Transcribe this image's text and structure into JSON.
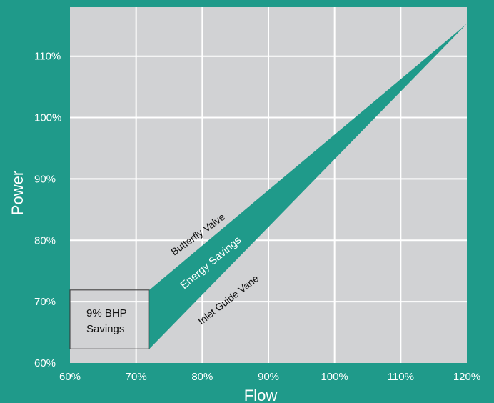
{
  "chart_data": {
    "type": "area",
    "xlabel": "Flow",
    "ylabel": "Power",
    "xlim": [
      60,
      120
    ],
    "ylim": [
      60,
      118
    ],
    "x_ticks": [
      "60%",
      "70%",
      "80%",
      "90%",
      "100%",
      "110%",
      "120%"
    ],
    "y_ticks": [
      "60%",
      "70%",
      "80%",
      "90%",
      "100%",
      "110%"
    ],
    "grid": true,
    "series": [
      {
        "name": "Butterfly Valve",
        "x": [
          72,
          120
        ],
        "y": [
          71.9,
          115.3
        ]
      },
      {
        "name": "Inlet Guide Vane",
        "x": [
          72,
          120
        ],
        "y": [
          62.3,
          115.3
        ]
      }
    ],
    "annotations": {
      "band": "Energy Savings",
      "box": [
        "9% BHP",
        "Savings"
      ]
    },
    "colors": {
      "background": "#1f9a8a",
      "plot_area": "#d1d2d4",
      "grid": "#ffffff",
      "band": "#1f9a8a"
    }
  }
}
